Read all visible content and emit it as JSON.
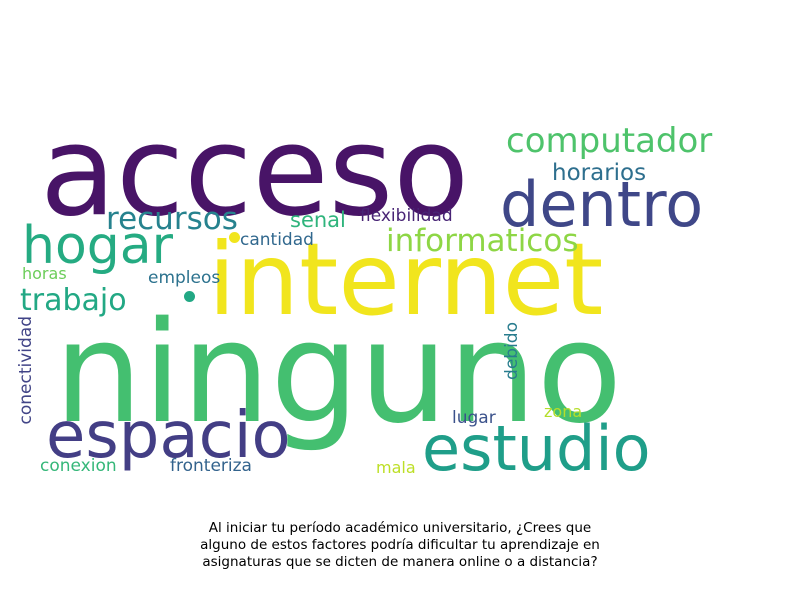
{
  "words": [
    {
      "text": "ninguno",
      "color": "#44bf70"
    },
    {
      "text": "acceso",
      "color": "#481467"
    },
    {
      "text": "internet",
      "color": "#f1e51d"
    },
    {
      "text": "dentro",
      "color": "#3f4788"
    },
    {
      "text": "estudio",
      "color": "#1f9e89"
    },
    {
      "text": "espacio",
      "color": "#433e85"
    },
    {
      "text": "hogar",
      "color": "#25ab82"
    },
    {
      "text": "computador",
      "color": "#4ec36b"
    },
    {
      "text": "recursos",
      "color": "#26828e"
    },
    {
      "text": "informaticos",
      "color": "#8ed645"
    },
    {
      "text": "trabajo",
      "color": "#22a884"
    },
    {
      "text": "horarios",
      "color": "#2e6f8e"
    },
    {
      "text": "senal",
      "color": "#2fb47c"
    },
    {
      "text": "flexibilidad",
      "color": "#482475"
    },
    {
      "text": "cantidad",
      "color": "#31688e"
    },
    {
      "text": "horas",
      "color": "#6ccd5a"
    },
    {
      "text": "empleos",
      "color": "#2c728e"
    },
    {
      "text": "conectividad",
      "color": "#414487"
    },
    {
      "text": "debido",
      "color": "#287c8e"
    },
    {
      "text": "lugar",
      "color": "#3b528b"
    },
    {
      "text": "zona",
      "color": "#b5de2b"
    },
    {
      "text": "conexion",
      "color": "#35b779"
    },
    {
      "text": "fronteriza",
      "color": "#33638d"
    },
    {
      "text": "mala",
      "color": "#bddf26"
    }
  ],
  "caption": {
    "line1": "Al iniciar tu período académico universitario, ¿Crees que",
    "line2": "alguno de estos factores podría dificultar tu aprendizaje en",
    "line3": "asignaturas que se dicten de manera online o a distancia?"
  }
}
